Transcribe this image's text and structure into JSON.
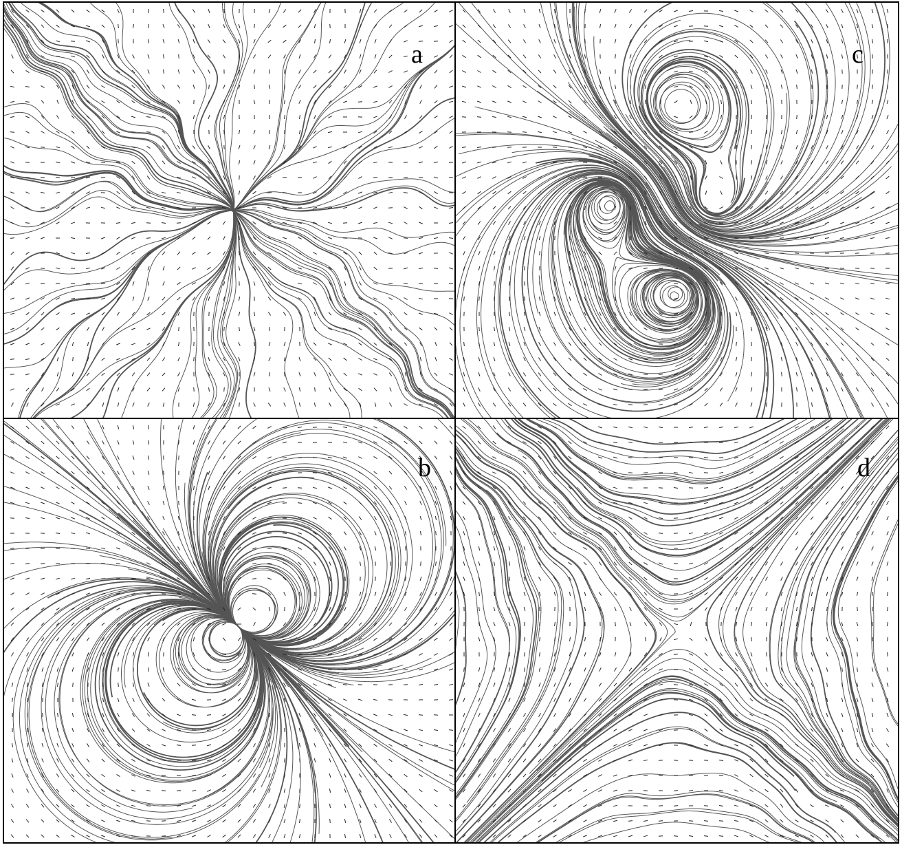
{
  "figure": {
    "panels": [
      {
        "id": "a",
        "label": "a",
        "pattern": "radial-source"
      },
      {
        "id": "c",
        "label": "c",
        "pattern": "quadrupole-vortices"
      },
      {
        "id": "b",
        "label": "b",
        "pattern": "dipole"
      },
      {
        "id": "d",
        "label": "d",
        "pattern": "saddle"
      }
    ],
    "colors": {
      "line": "#555555",
      "dot": "#222222",
      "border": "#000000",
      "background": "#ffffff"
    }
  }
}
